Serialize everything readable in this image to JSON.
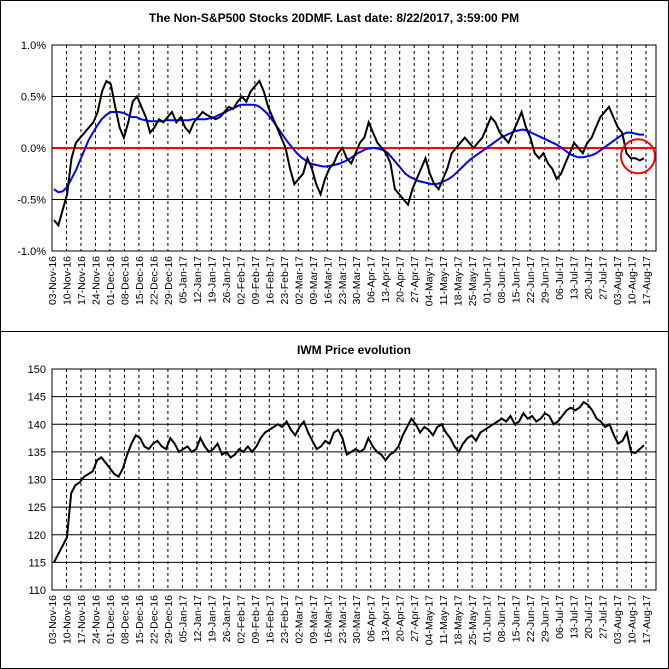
{
  "chart_data": [
    {
      "type": "line",
      "title": "The Non-S&P500 Stocks 20DMF. Last date: 8/22/2017, 3:59:00 PM",
      "xlabel": "",
      "ylabel": "",
      "ylim": [
        -1.0,
        1.0
      ],
      "y_ticks": [
        "1.0%",
        "0.5%",
        "0.0%",
        "-0.5%",
        "-1.0%"
      ],
      "x_tick_labels": [
        "03-Nov-16",
        "10-Nov-16",
        "17-Nov-16",
        "24-Nov-16",
        "01-Dec-16",
        "08-Dec-16",
        "15-Dec-16",
        "22-Dec-16",
        "29-Dec-16",
        "05-Jan-17",
        "12-Jan-17",
        "19-Jan-17",
        "26-Jan-17",
        "02-Feb-17",
        "09-Feb-17",
        "16-Feb-17",
        "23-Feb-17",
        "02-Mar-17",
        "09-Mar-17",
        "16-Mar-17",
        "23-Mar-17",
        "30-Mar-17",
        "06-Apr-17",
        "13-Apr-17",
        "20-Apr-17",
        "27-Apr-17",
        "04-May-17",
        "11-May-17",
        "18-May-17",
        "25-May-17",
        "01-Jun-17",
        "08-Jun-17",
        "15-Jun-17",
        "22-Jun-17",
        "29-Jun-17",
        "06-Jul-17",
        "13-Jul-17",
        "20-Jul-17",
        "27-Jul-17",
        "03-Aug-17",
        "10-Aug-17",
        "17-Aug-17"
      ],
      "grid": true,
      "colors": {
        "series": "#000000",
        "moving_average": "#0000ff",
        "zero_line": "#ff0000",
        "highlight_circle": "#ff0000"
      },
      "series": [
        {
          "values": [
            -0.7,
            -0.75,
            -0.6,
            -0.45,
            -0.1,
            0.05,
            0.1,
            0.15,
            0.2,
            0.25,
            0.35,
            0.55,
            0.65,
            0.62,
            0.4,
            0.2,
            0.1,
            0.25,
            0.45,
            0.5,
            0.4,
            0.3,
            0.15,
            0.2,
            0.28,
            0.25,
            0.3,
            0.35,
            0.25,
            0.3,
            0.2,
            0.15,
            0.25,
            0.3,
            0.35,
            0.32,
            0.3,
            0.28,
            0.3,
            0.35,
            0.4,
            0.38,
            0.45,
            0.5,
            0.45,
            0.55,
            0.6,
            0.65,
            0.55,
            0.4,
            0.3,
            0.2,
            0.1,
            0.0,
            -0.2,
            -0.35,
            -0.3,
            -0.25,
            -0.1,
            -0.2,
            -0.35,
            -0.45,
            -0.3,
            -0.2,
            -0.15,
            -0.05,
            0.0,
            -0.1,
            -0.15,
            -0.05,
            0.05,
            0.1,
            0.25,
            0.15,
            0.05,
            0.0,
            -0.05,
            -0.15,
            -0.4,
            -0.45,
            -0.5,
            -0.55,
            -0.4,
            -0.3,
            -0.2,
            -0.1,
            -0.25,
            -0.35,
            -0.4,
            -0.3,
            -0.2,
            -0.05,
            0.0,
            0.05,
            0.1,
            0.05,
            0.0,
            0.05,
            0.1,
            0.2,
            0.3,
            0.25,
            0.15,
            0.1,
            0.05,
            0.15,
            0.25,
            0.35,
            0.2,
            0.1,
            -0.05,
            -0.1,
            -0.05,
            -0.15,
            -0.2,
            -0.3,
            -0.25,
            -0.15,
            -0.05,
            0.05,
            0.0,
            -0.05,
            0.05,
            0.1,
            0.2,
            0.3,
            0.35,
            0.4,
            0.3,
            0.2,
            0.15,
            -0.05,
            -0.1,
            -0.1,
            -0.12,
            -0.1
          ]
        },
        {
          "values": [
            -0.4,
            -0.43,
            -0.42,
            -0.38,
            -0.3,
            -0.22,
            -0.12,
            -0.02,
            0.08,
            0.15,
            0.22,
            0.28,
            0.32,
            0.35,
            0.35,
            0.35,
            0.34,
            0.32,
            0.3,
            0.3,
            0.28,
            0.27,
            0.26,
            0.26,
            0.26,
            0.26,
            0.27,
            0.27,
            0.27,
            0.27,
            0.27,
            0.27,
            0.28,
            0.28,
            0.28,
            0.28,
            0.29,
            0.3,
            0.32,
            0.34,
            0.36,
            0.38,
            0.4,
            0.42,
            0.42,
            0.42,
            0.42,
            0.41,
            0.38,
            0.34,
            0.29,
            0.23,
            0.17,
            0.11,
            0.05,
            0.0,
            -0.05,
            -0.09,
            -0.12,
            -0.15,
            -0.16,
            -0.17,
            -0.18,
            -0.18,
            -0.17,
            -0.16,
            -0.15,
            -0.13,
            -0.11,
            -0.08,
            -0.05,
            -0.03,
            -0.01,
            0.0,
            0.0,
            -0.01,
            -0.02,
            -0.05,
            -0.1,
            -0.15,
            -0.2,
            -0.25,
            -0.28,
            -0.3,
            -0.32,
            -0.33,
            -0.34,
            -0.35,
            -0.35,
            -0.34,
            -0.32,
            -0.3,
            -0.27,
            -0.23,
            -0.19,
            -0.15,
            -0.11,
            -0.08,
            -0.05,
            -0.02,
            0.01,
            0.04,
            0.07,
            0.1,
            0.12,
            0.14,
            0.16,
            0.17,
            0.18,
            0.17,
            0.15,
            0.13,
            0.11,
            0.09,
            0.07,
            0.05,
            0.03,
            0.0,
            -0.03,
            -0.06,
            -0.08,
            -0.09,
            -0.09,
            -0.08,
            -0.07,
            -0.05,
            -0.02,
            0.01,
            0.04,
            0.07,
            0.1,
            0.13,
            0.15,
            0.15,
            0.14,
            0.13,
            0.13
          ]
        }
      ]
    },
    {
      "type": "line",
      "title": "IWM Price evolution",
      "xlabel": "",
      "ylabel": "",
      "ylim": [
        110,
        150
      ],
      "y_ticks": [
        "150",
        "145",
        "140",
        "135",
        "130",
        "125",
        "120",
        "115",
        "110"
      ],
      "x_tick_labels": [
        "03-Nov-16",
        "10-Nov-16",
        "17-Nov-16",
        "24-Nov-16",
        "01-Dec-16",
        "08-Dec-16",
        "15-Dec-16",
        "22-Dec-16",
        "29-Dec-16",
        "05-Jan-17",
        "12-Jan-17",
        "19-Jan-17",
        "26-Jan-17",
        "02-Feb-17",
        "09-Feb-17",
        "16-Feb-17",
        "23-Feb-17",
        "02-Mar-17",
        "09-Mar-17",
        "16-Mar-17",
        "23-Mar-17",
        "30-Mar-17",
        "06-Apr-17",
        "13-Apr-17",
        "20-Apr-17",
        "27-Apr-17",
        "04-May-17",
        "11-May-17",
        "18-May-17",
        "25-May-17",
        "01-Jun-17",
        "08-Jun-17",
        "15-Jun-17",
        "22-Jun-17",
        "29-Jun-17",
        "06-Jul-17",
        "13-Jul-17",
        "20-Jul-17",
        "27-Jul-17",
        "03-Aug-17",
        "10-Aug-17",
        "17-Aug-17"
      ],
      "grid": true,
      "colors": {
        "series": "#000000"
      },
      "series": [
        {
          "values": [
            115.0,
            116.5,
            118.0,
            119.5,
            127.5,
            129.0,
            129.5,
            130.5,
            131.0,
            131.5,
            133.5,
            134.0,
            133.0,
            132.0,
            131.0,
            130.5,
            132.0,
            134.5,
            136.5,
            138.0,
            137.5,
            136.0,
            135.5,
            136.5,
            137.0,
            136.0,
            135.5,
            137.5,
            136.5,
            135.0,
            135.5,
            136.0,
            135.0,
            135.5,
            137.5,
            136.0,
            135.0,
            135.5,
            136.5,
            134.5,
            135.0,
            134.0,
            134.5,
            135.5,
            135.0,
            136.0,
            135.0,
            136.0,
            137.5,
            138.5,
            139.0,
            139.5,
            140.0,
            139.5,
            140.5,
            139.0,
            138.0,
            139.5,
            140.5,
            138.5,
            137.0,
            135.5,
            136.0,
            137.0,
            136.5,
            138.5,
            139.0,
            137.5,
            134.5,
            135.0,
            135.5,
            135.0,
            135.5,
            137.5,
            136.0,
            135.0,
            134.5,
            133.5,
            134.5,
            135.0,
            136.0,
            138.0,
            139.5,
            141.0,
            140.0,
            138.5,
            139.5,
            139.0,
            138.0,
            139.5,
            140.0,
            138.5,
            137.5,
            136.0,
            135.0,
            136.5,
            137.5,
            138.0,
            137.0,
            138.5,
            139.0,
            139.5,
            140.0,
            140.5,
            141.0,
            140.5,
            141.5,
            140.0,
            140.5,
            142.0,
            141.0,
            141.5,
            140.5,
            141.0,
            142.0,
            141.5,
            140.0,
            140.5,
            141.5,
            142.5,
            143.0,
            142.5,
            143.0,
            144.0,
            143.5,
            142.5,
            141.0,
            140.5,
            139.5,
            140.0,
            138.0,
            136.5,
            137.0,
            138.5,
            135.0,
            134.8,
            135.5,
            136.2
          ]
        }
      ]
    }
  ]
}
